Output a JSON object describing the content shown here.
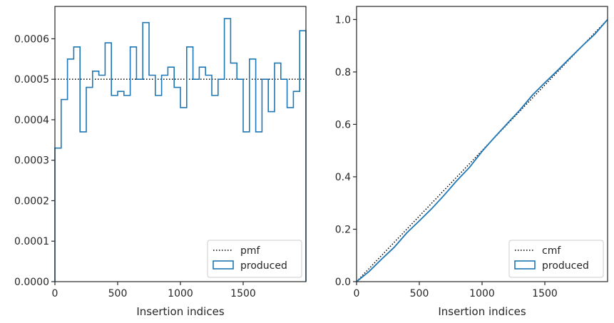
{
  "chart_data": [
    {
      "type": "histogram-step",
      "xlabel": "Insertion indices",
      "ylabel": "",
      "xlim": [
        0,
        2000
      ],
      "ylim": [
        0,
        0.00068
      ],
      "xticks": [
        0,
        500,
        1000,
        1500
      ],
      "yticks": [
        0.0,
        0.0001,
        0.0002,
        0.0003,
        0.0004,
        0.0005,
        0.0006
      ],
      "ytick_labels": [
        "0.0000",
        "0.0001",
        "0.0002",
        "0.0003",
        "0.0004",
        "0.0005",
        "0.0006"
      ],
      "legend_position": "lower-right",
      "legend": [
        {
          "label": "pmf",
          "style": "dotted",
          "color": "#000000"
        },
        {
          "label": "produced",
          "style": "step",
          "color": "#1f77b4"
        }
      ],
      "pmf_value": 0.0005,
      "bin_edges": [
        0,
        50,
        100,
        150,
        200,
        250,
        300,
        350,
        400,
        450,
        500,
        550,
        600,
        650,
        700,
        750,
        800,
        850,
        900,
        950,
        1000,
        1050,
        1100,
        1150,
        1200,
        1250,
        1300,
        1350,
        1400,
        1450,
        1500,
        1550,
        1600,
        1650,
        1700,
        1750,
        1800,
        1850,
        1900,
        1950,
        2000
      ],
      "values": [
        0.00033,
        0.00045,
        0.00055,
        0.00058,
        0.00037,
        0.00048,
        0.00052,
        0.00051,
        0.00059,
        0.00046,
        0.00047,
        0.00046,
        0.00058,
        0.0005,
        0.00064,
        0.00051,
        0.00046,
        0.00051,
        0.00053,
        0.00048,
        0.00043,
        0.00058,
        0.0005,
        0.00053,
        0.00051,
        0.00046,
        0.0005,
        0.00065,
        0.00054,
        0.0005,
        0.00037,
        0.00055,
        0.00037,
        0.0005,
        0.00042,
        0.00054,
        0.0005,
        0.00043,
        0.00047,
        0.00062
      ]
    },
    {
      "type": "line",
      "xlabel": "Insertion indices",
      "ylabel": "",
      "xlim": [
        0,
        2000
      ],
      "ylim": [
        0,
        1.05
      ],
      "xticks": [
        0,
        500,
        1000,
        1500
      ],
      "yticks": [
        0.0,
        0.2,
        0.4,
        0.6,
        0.8,
        1.0
      ],
      "ytick_labels": [
        "0.0",
        "0.2",
        "0.4",
        "0.6",
        "0.8",
        "1.0"
      ],
      "legend_position": "lower-right",
      "legend": [
        {
          "label": "cmf",
          "style": "dotted",
          "color": "#000000"
        },
        {
          "label": "produced",
          "style": "step",
          "color": "#1f77b4"
        }
      ],
      "cmf": {
        "x": [
          0,
          2000
        ],
        "y": [
          0,
          1.0
        ]
      },
      "produced": {
        "x": [
          0,
          100,
          200,
          300,
          400,
          500,
          600,
          700,
          800,
          900,
          1000,
          1100,
          1200,
          1300,
          1400,
          1500,
          1600,
          1700,
          1800,
          1900,
          2000
        ],
        "y": [
          0.0,
          0.039,
          0.086,
          0.131,
          0.186,
          0.232,
          0.279,
          0.331,
          0.386,
          0.436,
          0.497,
          0.551,
          0.603,
          0.654,
          0.711,
          0.759,
          0.805,
          0.853,
          0.9,
          0.945,
          1.0
        ]
      }
    }
  ]
}
